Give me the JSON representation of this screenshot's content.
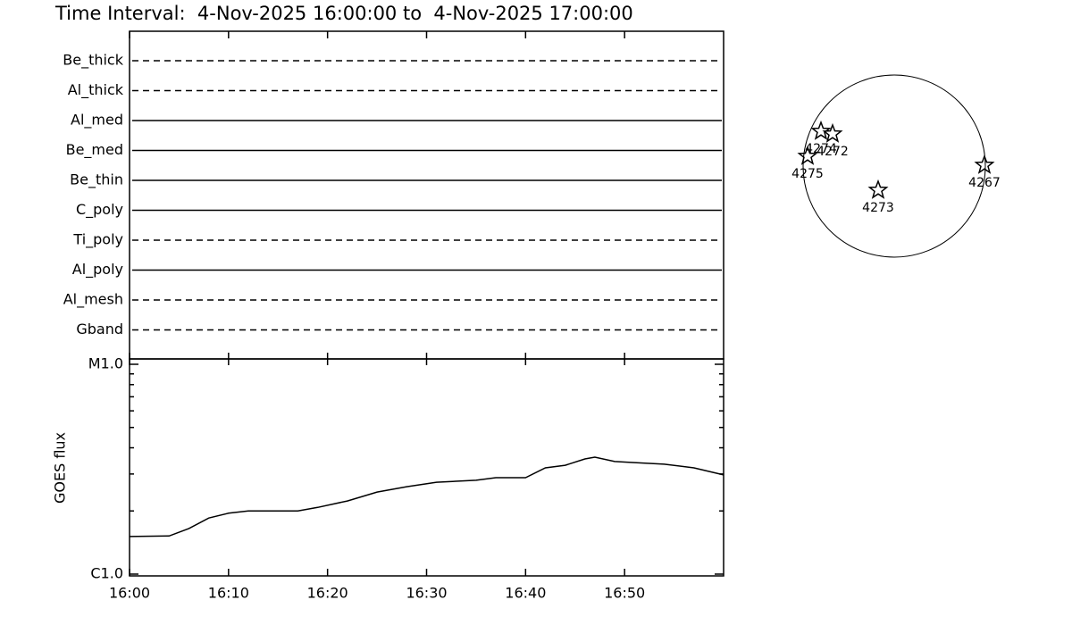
{
  "title": "Time Interval:  4-Nov-2025 16:00:00 to  4-Nov-2025 17:00:00",
  "filters": [
    {
      "name": "Be_thick",
      "style": "dashed"
    },
    {
      "name": "Al_thick",
      "style": "dashed"
    },
    {
      "name": "Al_med",
      "style": "solid"
    },
    {
      "name": "Be_med",
      "style": "solid"
    },
    {
      "name": "Be_thin",
      "style": "solid"
    },
    {
      "name": "C_poly",
      "style": "solid"
    },
    {
      "name": "Ti_poly",
      "style": "dashed"
    },
    {
      "name": "Al_poly",
      "style": "solid"
    },
    {
      "name": "Al_mesh",
      "style": "dashed"
    },
    {
      "name": "Gband",
      "style": "dashed"
    }
  ],
  "chart_data": {
    "type": "line",
    "ylabel": "GOES flux",
    "log_y": true,
    "color": "#000000",
    "x": [
      0,
      4,
      6,
      8,
      10,
      12,
      14,
      17,
      19,
      22,
      25,
      28,
      31,
      35,
      37,
      40,
      42,
      44,
      46,
      47,
      49,
      51,
      54,
      57,
      60
    ],
    "values": [
      1.51e-06,
      1.52e-06,
      1.65e-06,
      1.85e-06,
      1.95e-06,
      2e-06,
      2e-06,
      2e-06,
      2.08e-06,
      2.23e-06,
      2.46e-06,
      2.61e-06,
      2.74e-06,
      2.8e-06,
      2.88e-06,
      2.88e-06,
      3.21e-06,
      3.3e-06,
      3.54e-06,
      3.61e-06,
      3.44e-06,
      3.4e-06,
      3.34e-06,
      3.21e-06,
      2.97e-06
    ],
    "xlim": [
      0,
      60
    ],
    "xticks": [
      {
        "value": 0,
        "label": "16:00"
      },
      {
        "value": 10,
        "label": "16:10"
      },
      {
        "value": 20,
        "label": "16:20"
      },
      {
        "value": 30,
        "label": "16:30"
      },
      {
        "value": 40,
        "label": "16:40"
      },
      {
        "value": 50,
        "label": "16:50"
      }
    ],
    "ylim": [
      1e-06,
      1e-05
    ],
    "yticks": [
      {
        "value": 1e-06,
        "label": "C1.0"
      },
      {
        "value": 1e-05,
        "label": "M1.0"
      }
    ]
  },
  "regions": [
    {
      "label": "4274",
      "color": "#ff0000"
    },
    {
      "label": "4272",
      "color": "#ff0000"
    },
    {
      "label": "4275",
      "color": "#ff0000"
    },
    {
      "label": "4273",
      "color": "#ff0000"
    },
    {
      "label": "4267",
      "color": "#ff0000"
    }
  ]
}
